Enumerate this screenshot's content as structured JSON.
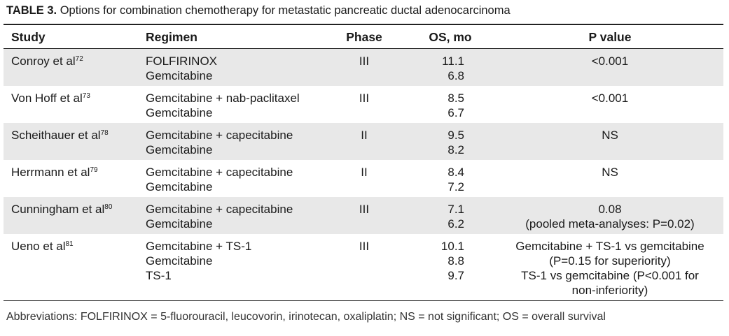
{
  "caption": {
    "label": "TABLE 3.",
    "text": "Options for combination chemotherapy for metastatic pancreatic ductal adenocarcinoma"
  },
  "headers": {
    "study": "Study",
    "regimen": "Regimen",
    "phase": "Phase",
    "os": "OS, mo",
    "p_value": "P value"
  },
  "rows": [
    {
      "study": "Conroy et al",
      "ref": "72",
      "regimen": [
        "FOLFIRINOX",
        "Gemcitabine"
      ],
      "phase": "III",
      "os": [
        "11.1",
        "6.8"
      ],
      "p_value": [
        "<0.001"
      ]
    },
    {
      "study": "Von Hoff et al",
      "ref": "73",
      "regimen": [
        "Gemcitabine + nab-paclitaxel",
        "Gemcitabine"
      ],
      "phase": "III",
      "os": [
        "8.5",
        "6.7"
      ],
      "p_value": [
        "<0.001"
      ]
    },
    {
      "study": "Scheithauer et al",
      "ref": "78",
      "regimen": [
        "Gemcitabine + capecitabine",
        "Gemcitabine"
      ],
      "phase": "II",
      "os": [
        "9.5",
        "8.2"
      ],
      "p_value": [
        "NS"
      ]
    },
    {
      "study": "Herrmann et al",
      "ref": "79",
      "regimen": [
        "Gemcitabine + capecitabine",
        "Gemcitabine"
      ],
      "phase": "II",
      "os": [
        "8.4",
        "7.2"
      ],
      "p_value": [
        "NS"
      ]
    },
    {
      "study": "Cunningham et al",
      "ref": "80",
      "regimen": [
        "Gemcitabine + capecitabine",
        "Gemcitabine"
      ],
      "phase": "III",
      "os": [
        "7.1",
        "6.2"
      ],
      "p_value": [
        "0.08",
        "(pooled meta-analyses: P=0.02)"
      ]
    },
    {
      "study": "Ueno et al",
      "ref": "81",
      "regimen": [
        "Gemcitabine + TS-1",
        "Gemcitabine",
        "TS-1"
      ],
      "phase": "III",
      "os": [
        "10.1",
        "8.8",
        "9.7"
      ],
      "p_value": [
        "Gemcitabine + TS-1 vs gemcitabine",
        "(P=0.15 for superiority)",
        "TS-1 vs gemcitabine (P<0.001 for",
        "non-inferiority)"
      ]
    }
  ],
  "footnote": "Abbreviations: FOLFIRINOX = 5-fluorouracil, leucovorin, irinotecan, oxaliplatin; NS = not significant; OS = overall survival"
}
